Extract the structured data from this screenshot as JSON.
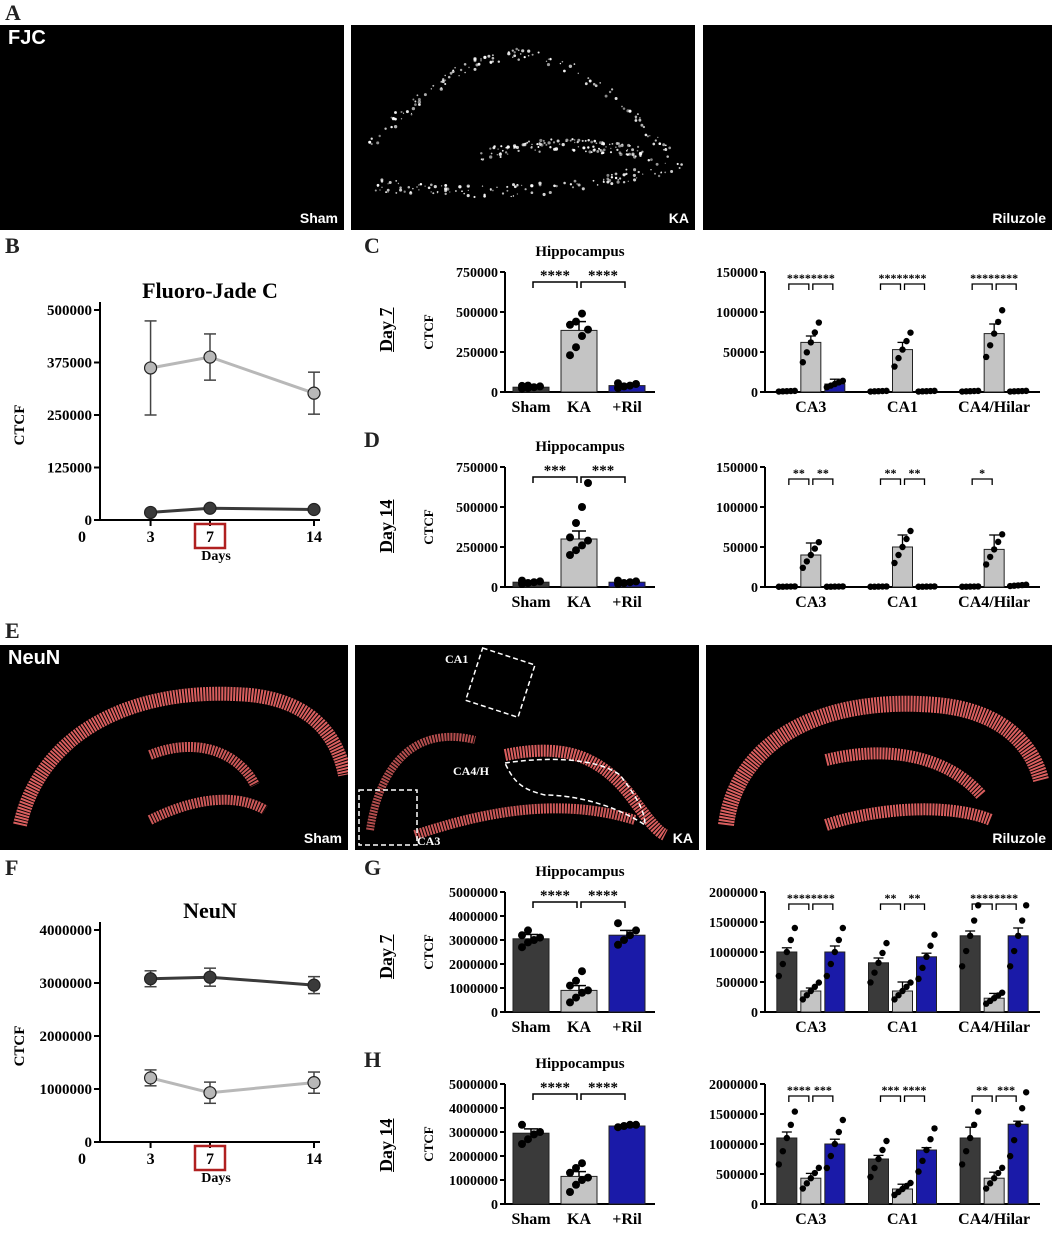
{
  "panel_labels": {
    "A": "A",
    "B": "B",
    "C": "C",
    "D": "D",
    "E": "E",
    "F": "F",
    "G": "G",
    "H": "H"
  },
  "row_labels": {
    "c": "Day 7",
    "d": "Day 14",
    "g": "Day 7",
    "h": "Day 14"
  },
  "micrographs": {
    "fjc": {
      "title": "FJC",
      "labels": [
        "Sham",
        "KA",
        "Riluzole"
      ]
    },
    "neun": {
      "title": "NeuN",
      "labels": [
        "Sham",
        "KA",
        "Riluzole"
      ],
      "regions": [
        "CA1",
        "CA4/H",
        "CA3"
      ]
    }
  },
  "colors": {
    "sham": "#3a3a3a",
    "ka": "#c4c4c4",
    "ril": "#1a1aa8",
    "line_dark": "#3a3a3a",
    "line_light": "#b8b8b8",
    "highlight": "#b02020",
    "fjc_tissue": "#ffffff",
    "neun_tissue": "#ff6e6e"
  },
  "chart_data": [
    {
      "id": "B",
      "type": "line",
      "title": "Fluoro-Jade C",
      "xlabel": "Days",
      "ylabel": "CTCF",
      "x": [
        3,
        7,
        14
      ],
      "xticks": [
        "0",
        "3",
        "7",
        "14"
      ],
      "highlight_x": "7",
      "yticks": [
        "0",
        "125000",
        "250000",
        "375000",
        "500000"
      ],
      "ylim": [
        0,
        500000
      ],
      "series": [
        {
          "values": [
            362000,
            388000,
            302000
          ],
          "err": [
            112000,
            55000,
            50000
          ],
          "tone": "light"
        },
        {
          "values": [
            18000,
            28000,
            25000
          ],
          "err": [
            2000,
            3000,
            3000
          ],
          "tone": "dark"
        }
      ]
    },
    {
      "id": "C1",
      "type": "bar",
      "title": "Hippocampus",
      "ylabel": "CTCF",
      "categories": [
        "Sham",
        "KA",
        "+Ril"
      ],
      "values": [
        30000,
        385000,
        40000
      ],
      "err": [
        5000,
        55000,
        10000
      ],
      "yticks": [
        "0",
        "250000",
        "500000",
        "750000"
      ],
      "ylim": [
        0,
        750000
      ],
      "points": [
        [
          22000,
          25000,
          30000,
          35000,
          38000,
          40000
        ],
        [
          230000,
          280000,
          350000,
          390000,
          420000,
          440000,
          490000
        ],
        [
          25000,
          35000,
          40000,
          50000,
          55000
        ]
      ],
      "brackets": [
        {
          "from": 0,
          "to": 1,
          "label": "****"
        },
        {
          "from": 1,
          "to": 2,
          "label": "****"
        }
      ]
    },
    {
      "id": "C2",
      "type": "bar",
      "groups": [
        "CA3",
        "CA1",
        "CA4/Hilar"
      ],
      "values": [
        [
          1000,
          62000,
          10000
        ],
        [
          1000,
          53000,
          1000
        ],
        [
          1000,
          73000,
          1000
        ]
      ],
      "err": [
        [
          300,
          8000,
          6000
        ],
        [
          300,
          9000,
          300
        ],
        [
          300,
          12000,
          300
        ]
      ],
      "yticks": [
        "0",
        "50000",
        "100000",
        "150000"
      ],
      "ylim": [
        0,
        150000
      ],
      "brackets": [
        {
          "group": 0,
          "labels": [
            "****",
            "****"
          ]
        },
        {
          "group": 1,
          "labels": [
            "****",
            "****"
          ]
        },
        {
          "group": 2,
          "labels": [
            "****",
            "****"
          ]
        }
      ]
    },
    {
      "id": "D1",
      "type": "bar",
      "title": "Hippocampus",
      "ylabel": "CTCF",
      "categories": [
        "Sham",
        "KA",
        "+Ril"
      ],
      "values": [
        30000,
        300000,
        30000
      ],
      "err": [
        5000,
        50000,
        5000
      ],
      "yticks": [
        "0",
        "250000",
        "500000",
        "750000"
      ],
      "ylim": [
        0,
        750000
      ],
      "points": [
        [
          20000,
          25000,
          30000,
          35000,
          40000
        ],
        [
          200000,
          230000,
          260000,
          290000,
          310000,
          400000,
          500000,
          650000
        ],
        [
          20000,
          25000,
          30000,
          35000,
          40000
        ]
      ],
      "brackets": [
        {
          "from": 0,
          "to": 1,
          "label": "***"
        },
        {
          "from": 1,
          "to": 2,
          "label": "***"
        }
      ]
    },
    {
      "id": "D2",
      "type": "bar",
      "groups": [
        "CA3",
        "CA1",
        "CA4/Hilar"
      ],
      "values": [
        [
          500,
          40000,
          500
        ],
        [
          500,
          50000,
          500
        ],
        [
          500,
          47000,
          2000
        ]
      ],
      "err": [
        [
          200,
          15000,
          200
        ],
        [
          200,
          15000,
          200
        ],
        [
          200,
          18000,
          1000
        ]
      ],
      "yticks": [
        "0",
        "50000",
        "100000",
        "150000"
      ],
      "ylim": [
        0,
        150000
      ],
      "brackets": [
        {
          "group": 0,
          "labels": [
            "**",
            "**"
          ]
        },
        {
          "group": 1,
          "labels": [
            "**",
            "**"
          ]
        },
        {
          "group": 2,
          "labels": [
            "*"
          ]
        }
      ]
    },
    {
      "id": "F",
      "type": "line",
      "title": "NeuN",
      "xlabel": "Days",
      "ylabel": "CTCF",
      "x": [
        3,
        7,
        14
      ],
      "xticks": [
        "0",
        "3",
        "7",
        "14"
      ],
      "highlight_x": "7",
      "yticks": [
        "0",
        "1000000",
        "2000000",
        "3000000",
        "4000000"
      ],
      "ylim": [
        0,
        4000000
      ],
      "series": [
        {
          "values": [
            3080000,
            3110000,
            2960000
          ],
          "err": [
            150000,
            170000,
            160000
          ],
          "tone": "dark"
        },
        {
          "values": [
            1210000,
            930000,
            1120000
          ],
          "err": [
            150000,
            200000,
            200000
          ],
          "tone": "light"
        }
      ]
    },
    {
      "id": "G1",
      "type": "bar",
      "title": "Hippocampus",
      "ylabel": "CTCF",
      "categories": [
        "Sham",
        "KA",
        "+Ril"
      ],
      "values": [
        3050000,
        900000,
        3200000
      ],
      "err": [
        180000,
        200000,
        200000
      ],
      "yticks": [
        "0",
        "1000000",
        "2000000",
        "3000000",
        "4000000",
        "5000000"
      ],
      "ylim": [
        0,
        5000000
      ],
      "points": [
        [
          2700000,
          2900000,
          3000000,
          3100000,
          3200000,
          3400000
        ],
        [
          400000,
          600000,
          800000,
          900000,
          1100000,
          1300000,
          1700000
        ],
        [
          2800000,
          3000000,
          3200000,
          3400000,
          3700000
        ]
      ],
      "brackets": [
        {
          "from": 0,
          "to": 1,
          "label": "****"
        },
        {
          "from": 1,
          "to": 2,
          "label": "****"
        }
      ]
    },
    {
      "id": "G2",
      "type": "bar",
      "groups": [
        "CA3",
        "CA1",
        "CA4/Hilar"
      ],
      "values": [
        [
          1000000,
          350000,
          1000000
        ],
        [
          820000,
          350000,
          920000
        ],
        [
          1270000,
          230000,
          1270000
        ]
      ],
      "err": [
        [
          70000,
          50000,
          100000
        ],
        [
          80000,
          150000,
          60000
        ],
        [
          80000,
          80000,
          130000
        ]
      ],
      "yticks": [
        "0",
        "500000",
        "1000000",
        "1500000",
        "2000000"
      ],
      "ylim": [
        0,
        2000000
      ],
      "brackets": [
        {
          "group": 0,
          "labels": [
            "****",
            "****"
          ]
        },
        {
          "group": 1,
          "labels": [
            "**",
            "**"
          ]
        },
        {
          "group": 2,
          "labels": [
            "****",
            "****"
          ]
        }
      ]
    },
    {
      "id": "H1",
      "type": "bar",
      "title": "Hippocampus",
      "ylabel": "CTCF",
      "categories": [
        "Sham",
        "KA",
        "+Ril"
      ],
      "values": [
        2950000,
        1150000,
        3250000
      ],
      "err": [
        180000,
        200000,
        50000
      ],
      "yticks": [
        "0",
        "1000000",
        "2000000",
        "3000000",
        "4000000",
        "5000000"
      ],
      "ylim": [
        0,
        5000000
      ],
      "points": [
        [
          2500000,
          2700000,
          2900000,
          3000000,
          3300000
        ],
        [
          500000,
          800000,
          1000000,
          1100000,
          1300000,
          1500000,
          1700000
        ],
        [
          3200000,
          3250000,
          3300000,
          3300000
        ]
      ],
      "brackets": [
        {
          "from": 0,
          "to": 1,
          "label": "****"
        },
        {
          "from": 1,
          "to": 2,
          "label": "****"
        }
      ]
    },
    {
      "id": "H2",
      "type": "bar",
      "groups": [
        "CA3",
        "CA1",
        "CA4/Hilar"
      ],
      "values": [
        [
          1100000,
          430000,
          1000000
        ],
        [
          750000,
          250000,
          900000
        ],
        [
          1100000,
          430000,
          1330000
        ]
      ],
      "err": [
        [
          100000,
          80000,
          80000
        ],
        [
          60000,
          80000,
          40000
        ],
        [
          180000,
          100000,
          50000
        ]
      ],
      "yticks": [
        "0",
        "500000",
        "1000000",
        "1500000",
        "2000000"
      ],
      "ylim": [
        0,
        2000000
      ],
      "brackets": [
        {
          "group": 0,
          "labels": [
            "****",
            "***"
          ]
        },
        {
          "group": 1,
          "labels": [
            "***",
            "****"
          ]
        },
        {
          "group": 2,
          "labels": [
            "**",
            "***"
          ]
        }
      ]
    }
  ]
}
